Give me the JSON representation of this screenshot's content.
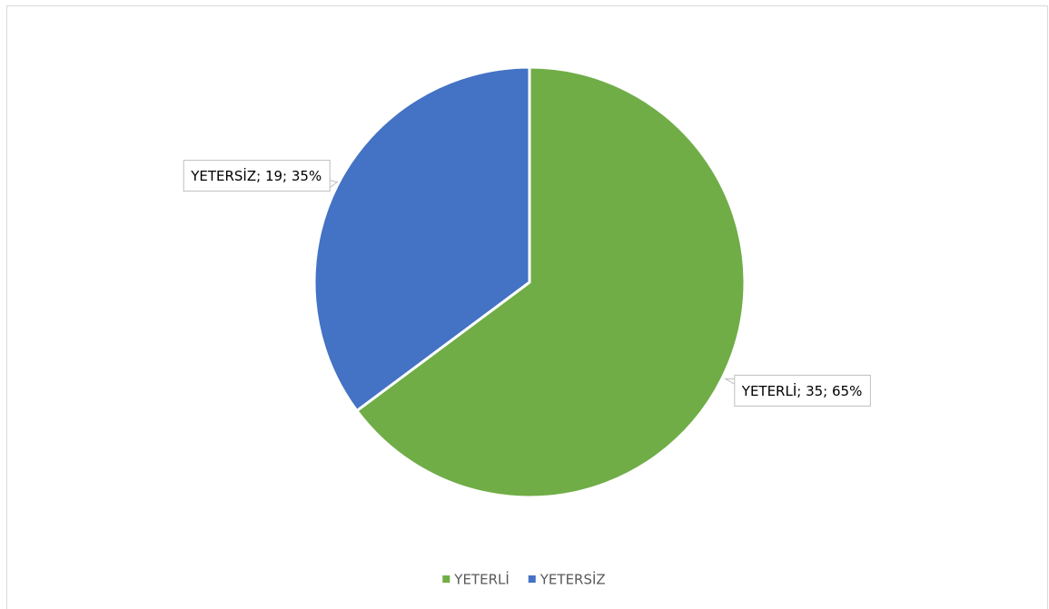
{
  "chart_data": {
    "type": "pie",
    "categories": [
      "YETERLİ",
      "YETERSİZ"
    ],
    "values": [
      35,
      19
    ],
    "value_labels": [
      "YETERLİ; 35; 65%",
      "YETERSİZ; 19; 35%"
    ],
    "colors": [
      "#70ad47",
      "#4472c4"
    ],
    "legend": "bottom"
  }
}
